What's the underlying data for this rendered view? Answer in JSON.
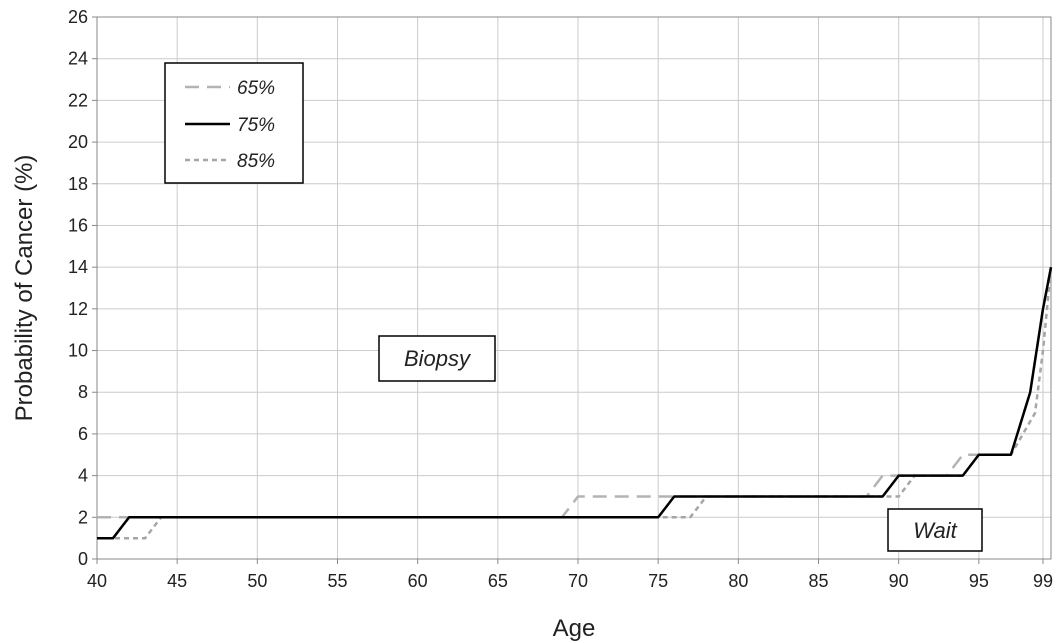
{
  "chart_data": {
    "type": "line",
    "title": "",
    "xlabel": "Age",
    "ylabel": "Probability of Cancer (%)",
    "xlim": [
      40,
      99.5
    ],
    "ylim": [
      0,
      26
    ],
    "x_ticks": [
      40,
      45,
      50,
      55,
      60,
      65,
      70,
      75,
      80,
      85,
      90,
      95,
      99
    ],
    "y_ticks": [
      0,
      2,
      4,
      6,
      8,
      10,
      12,
      14,
      16,
      18,
      20,
      22,
      24,
      26
    ],
    "grid": true,
    "legend_position": "top-left",
    "annotations": [
      {
        "text": "Biopsy",
        "x": 61,
        "y": 9.9
      },
      {
        "text": "Wait",
        "x": 95.2,
        "y": 1.4
      }
    ],
    "series": [
      {
        "name": "65%",
        "color": "#b3b3b3",
        "dash": "long-dash",
        "points": [
          [
            40,
            2
          ],
          [
            69,
            2
          ],
          [
            70,
            3
          ],
          [
            88,
            3
          ],
          [
            89,
            4
          ],
          [
            93,
            4
          ],
          [
            94,
            5
          ],
          [
            97,
            5
          ],
          [
            98.2,
            8
          ],
          [
            99,
            12
          ],
          [
            99.5,
            14
          ]
        ]
      },
      {
        "name": "75%",
        "color": "#000000",
        "dash": "solid",
        "points": [
          [
            40,
            1
          ],
          [
            41,
            1
          ],
          [
            42,
            2
          ],
          [
            75,
            2
          ],
          [
            76,
            3
          ],
          [
            89,
            3
          ],
          [
            90,
            4
          ],
          [
            94,
            4
          ],
          [
            95,
            5
          ],
          [
            97,
            5
          ],
          [
            98.2,
            8
          ],
          [
            99,
            12
          ],
          [
            99.5,
            14
          ]
        ]
      },
      {
        "name": "85%",
        "color": "#a6a6a6",
        "dash": "short-dash",
        "points": [
          [
            40,
            1
          ],
          [
            43,
            1
          ],
          [
            44,
            2
          ],
          [
            77,
            2
          ],
          [
            78,
            3
          ],
          [
            90,
            3
          ],
          [
            91,
            4
          ],
          [
            94,
            4
          ],
          [
            95,
            5
          ],
          [
            97,
            5
          ],
          [
            98.5,
            7
          ],
          [
            99,
            10
          ],
          [
            99.5,
            14
          ]
        ]
      }
    ]
  }
}
